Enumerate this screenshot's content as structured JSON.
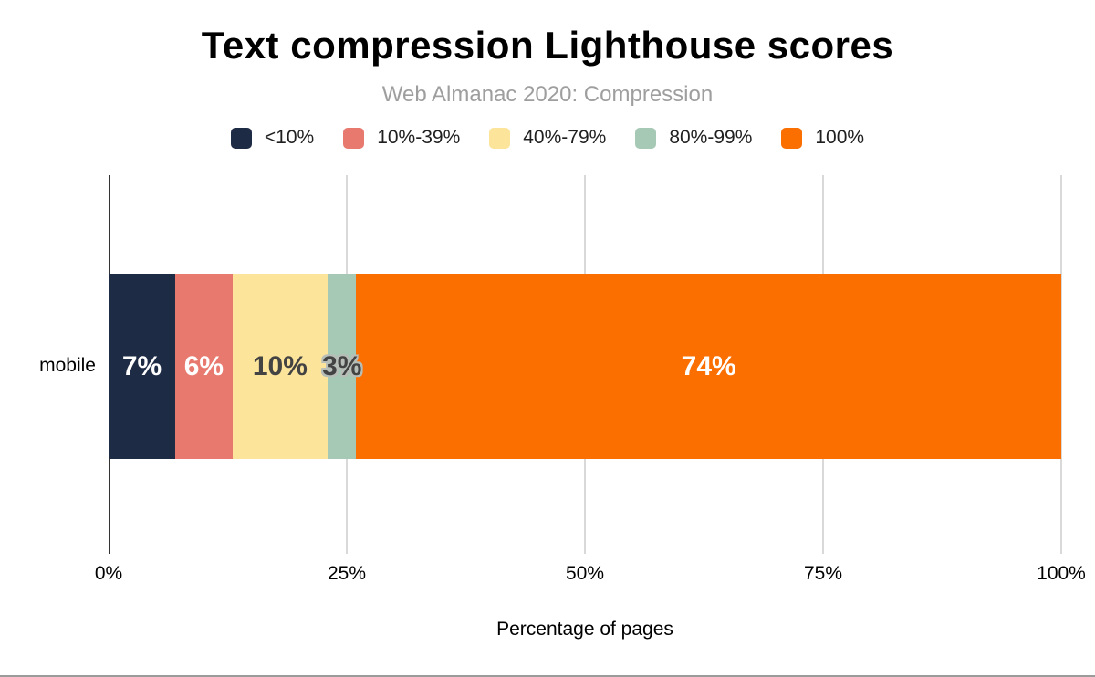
{
  "chart": {
    "title": "Text compression Lighthouse scores",
    "subtitle": "Web Almanac 2020: Compression"
  },
  "chart_data": {
    "type": "bar",
    "orientation": "horizontal",
    "stacked": true,
    "title": "Text compression Lighthouse scores",
    "subtitle": "Web Almanac 2020: Compression",
    "categories": [
      "mobile"
    ],
    "series": [
      {
        "name": "<10%",
        "values": [
          7
        ],
        "color": "#1e2b45",
        "data_label": "7%",
        "label_color": "#ffffff",
        "label_halo": false
      },
      {
        "name": "10%-39%",
        "values": [
          6
        ],
        "color": "#e8796f",
        "data_label": "6%",
        "label_color": "#ffffff",
        "label_halo": false
      },
      {
        "name": "40%-79%",
        "values": [
          10
        ],
        "color": "#fde49b",
        "data_label": "10%",
        "label_color": "#434343",
        "label_halo": false
      },
      {
        "name": "80%-99%",
        "values": [
          3
        ],
        "color": "#a6c9b6",
        "data_label": "3%",
        "label_color": "#434343",
        "label_halo": true
      },
      {
        "name": "100%",
        "values": [
          74
        ],
        "color": "#fb6e00",
        "data_label": "74%",
        "label_color": "#ffffff",
        "label_halo": false
      }
    ],
    "xlabel": "Percentage of pages",
    "x_ticks": [
      {
        "label": "0%",
        "value": 0
      },
      {
        "label": "25%",
        "value": 25
      },
      {
        "label": "50%",
        "value": 50
      },
      {
        "label": "75%",
        "value": 75
      },
      {
        "label": "100%",
        "value": 100
      }
    ],
    "xlim": [
      0,
      100
    ],
    "grid": true,
    "legend_position": "top"
  },
  "colors": {
    "grid": "#d9d9d9",
    "axis": "#333333",
    "subtitle": "#9e9e9e",
    "page_border": "#9b9b9b"
  }
}
